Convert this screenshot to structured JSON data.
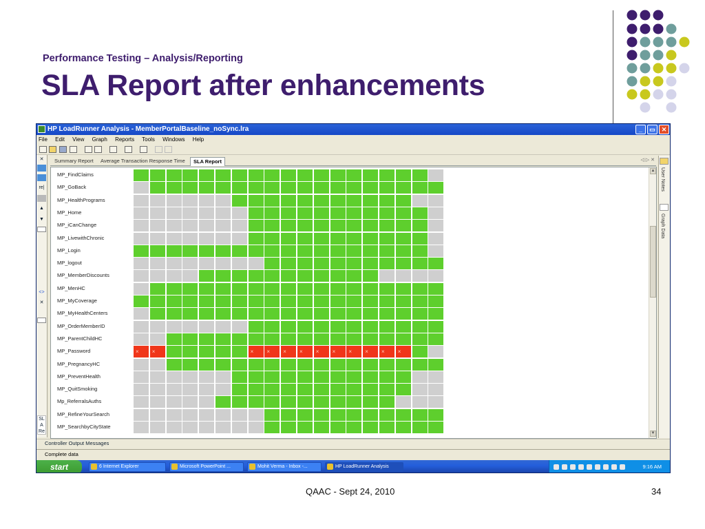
{
  "slide": {
    "subtitle": "Performance Testing – Analysis/Reporting",
    "title": "SLA Report after enhancements",
    "footer_center": "QAAC - Sept 24, 2010",
    "page_number": "34",
    "colors": {
      "title": "#3e1d6d",
      "dot_purple": "#3e1d6d",
      "dot_teal": "#6f9e9c",
      "dot_yellow": "#c8c81e",
      "dot_lilac": "#d4d4ea"
    }
  },
  "app": {
    "window_title": "HP LoadRunner Analysis - MemberPortalBaseline_noSync.lra",
    "menu": [
      "File",
      "Edit",
      "View",
      "Graph",
      "Reports",
      "Tools",
      "Windows",
      "Help"
    ],
    "tabs": [
      "Summary Report",
      "Average Transaction Response Time",
      "SLA Report"
    ],
    "active_tab": "SLA Report",
    "tab_nav": "◁ ▷ ✕",
    "right_panel": [
      "User Notes",
      "Graph Data"
    ],
    "left_panel_labels": [
      "re|",
      "SL A Re"
    ],
    "bottom_panel": "Controller Output Messages",
    "status": "Complete data",
    "legend_colors": {
      "pass": "#5ecf2d",
      "fail": "#f0361a",
      "no_data": "#cfcfcf"
    }
  },
  "sla_rows": [
    {
      "name": "MP_FindClaims",
      "cells": "ggggggggggggggggggs"
    },
    {
      "name": "MP_GoBack",
      "cells": "sgggggggggggggggggg"
    },
    {
      "name": "MP_HealthPrograms",
      "cells": "ssssssgggggggggggss"
    },
    {
      "name": "MP_Home",
      "cells": "sssssssgggggggggggs"
    },
    {
      "name": "MP_iCanChange",
      "cells": "sssssssgggggggggggs"
    },
    {
      "name": "MP_LivewithChronic",
      "cells": "sssssssgggggggggggs"
    },
    {
      "name": "MP_Login",
      "cells": "ggggggggggggggggggs"
    },
    {
      "name": "MP_logout",
      "cells": "ssssssssggggggggggg"
    },
    {
      "name": "MP_MemberDiscounts",
      "cells": "ssssgggggggggggssss"
    },
    {
      "name": "MP_MenHC",
      "cells": "sgggggggggggggggggg"
    },
    {
      "name": "MP_MyCoverage",
      "cells": "ggggggggggggggggggg"
    },
    {
      "name": "MP_MyHealthCenters",
      "cells": "sgggggggggggggggggg"
    },
    {
      "name": "MP_OrderMemberID",
      "cells": "sssssssgggggggggggg"
    },
    {
      "name": "MP_ParentChildHC",
      "cells": "ssggggggggggggggggg"
    },
    {
      "name": "MP_Password",
      "cells": "rrgggggrrrrrrrrrrgs"
    },
    {
      "name": "MP_PregnancyHC",
      "cells": "ssggggggggggggggggg"
    },
    {
      "name": "MP_PreventHealth",
      "cells": "ssssssgggggggggggss"
    },
    {
      "name": "MP_QuitSmoking",
      "cells": "ssssssgggggggggggss"
    },
    {
      "name": "Mp_ReferralsAuths",
      "cells": "sssssgggggggggggsss"
    },
    {
      "name": "MP_RefineYourSearch",
      "cells": "ssssssssggggggggggg"
    },
    {
      "name": "MP_SearchbyCityState",
      "cells": "ssssssssggggggggggg"
    }
  ],
  "taskbar": {
    "start": "start",
    "buttons": [
      "6 Internet Explorer",
      "Microsoft PowerPoint ...",
      "Mohit Verma - Inbox -...",
      "HP LoadRunner Analysis"
    ],
    "clock": "9:16 AM"
  }
}
